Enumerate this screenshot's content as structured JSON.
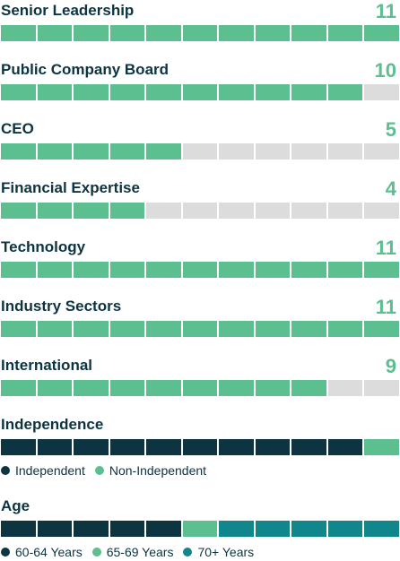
{
  "colors": {
    "green": "#5cbf8f",
    "empty": "#dcdcdc",
    "navy": "#0c3441",
    "teal": "#11868c"
  },
  "total_segments": 11,
  "skills": [
    {
      "label": "Senior Leadership",
      "count": "11",
      "value": 11
    },
    {
      "label": "Public Company Board",
      "count": "10",
      "value": 10
    },
    {
      "label": "CEO",
      "count": "5",
      "value": 5
    },
    {
      "label": "Financial Expertise",
      "count": "4",
      "value": 4
    },
    {
      "label": "Technology",
      "count": "11",
      "value": 11
    },
    {
      "label": "Industry Sectors",
      "count": "11",
      "value": 11
    },
    {
      "label": "International",
      "count": "9",
      "value": 9
    }
  ],
  "independence": {
    "title": "Independence",
    "segments": [
      {
        "color_key": "navy",
        "count": 10
      },
      {
        "color_key": "green",
        "count": 1
      }
    ],
    "legend": [
      {
        "label": "Independent",
        "color_key": "navy"
      },
      {
        "label": "Non-Independent",
        "color_key": "green"
      }
    ]
  },
  "age": {
    "title": "Age",
    "segments": [
      {
        "color_key": "navy",
        "count": 5
      },
      {
        "color_key": "green",
        "count": 1
      },
      {
        "color_key": "teal",
        "count": 5
      }
    ],
    "legend": [
      {
        "label": "60-64 Years",
        "color_key": "navy"
      },
      {
        "label": "65-69 Years",
        "color_key": "green"
      },
      {
        "label": "70+ Years",
        "color_key": "teal"
      }
    ]
  }
}
